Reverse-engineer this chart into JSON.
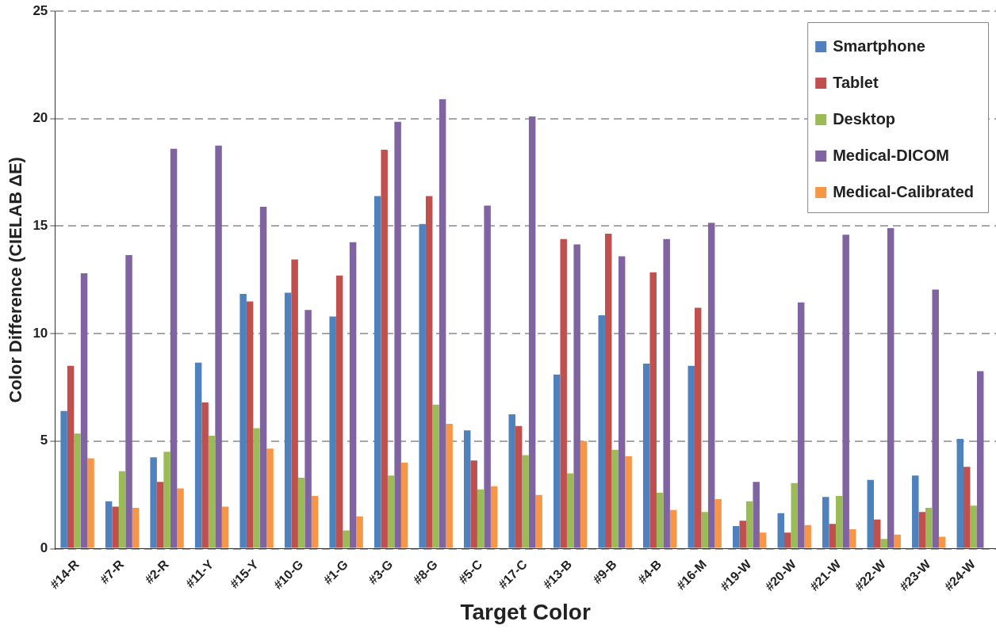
{
  "chart_data": {
    "type": "bar",
    "xlabel": "Target Color",
    "ylabel": "Color Difference (CIELAB ΔE)",
    "categories": [
      "#14-R",
      "#7-R",
      "#2-R",
      "#11-Y",
      "#15-Y",
      "#10-G",
      "#1-G",
      "#3-G",
      "#8-G",
      "#5-C",
      "#17-C",
      "#13-B",
      "#9-B",
      "#4-B",
      "#16-M",
      "#19-W",
      "#20-W",
      "#21-W",
      "#22-W",
      "#23-W",
      "#24-W"
    ],
    "series": [
      {
        "name": "Smartphone",
        "color": "#4f81bd",
        "values": [
          6.4,
          2.2,
          4.25,
          8.65,
          11.85,
          11.9,
          10.8,
          16.4,
          15.1,
          5.5,
          6.25,
          8.1,
          10.85,
          8.6,
          8.5,
          1.05,
          1.65,
          2.4,
          3.2,
          3.4,
          5.1
        ]
      },
      {
        "name": "Tablet",
        "color": "#c0504d",
        "values": [
          8.5,
          1.95,
          3.1,
          6.8,
          11.5,
          13.45,
          12.7,
          18.55,
          16.4,
          4.1,
          5.7,
          14.4,
          14.65,
          12.85,
          11.2,
          1.3,
          0.75,
          1.15,
          1.35,
          1.7,
          3.8
        ]
      },
      {
        "name": "Desktop",
        "color": "#9bbb59",
        "values": [
          5.35,
          3.6,
          4.5,
          5.25,
          5.6,
          3.3,
          0.85,
          3.4,
          6.7,
          2.75,
          4.35,
          3.5,
          4.6,
          2.6,
          1.7,
          2.2,
          3.05,
          2.45,
          0.45,
          1.9,
          2.0
        ]
      },
      {
        "name": "Medical-DICOM",
        "color": "#8064a2",
        "values": [
          12.8,
          13.65,
          18.6,
          18.75,
          15.9,
          11.1,
          14.25,
          19.85,
          20.9,
          15.95,
          20.1,
          14.15,
          13.6,
          14.4,
          15.15,
          3.1,
          11.45,
          14.6,
          14.9,
          12.05,
          8.25
        ]
      },
      {
        "name": "Medical-Calibrated",
        "color": "#f79646",
        "values": [
          4.2,
          1.9,
          2.8,
          1.95,
          4.65,
          2.45,
          1.5,
          4.0,
          5.8,
          2.9,
          2.5,
          5.0,
          4.3,
          1.8,
          2.3,
          0.75,
          1.1,
          0.9,
          0.65,
          0.55,
          null
        ]
      }
    ],
    "ylim": [
      0,
      25
    ],
    "yticks": [
      0,
      5,
      10,
      15,
      20,
      25
    ],
    "grid": "y",
    "legend": "top right"
  }
}
